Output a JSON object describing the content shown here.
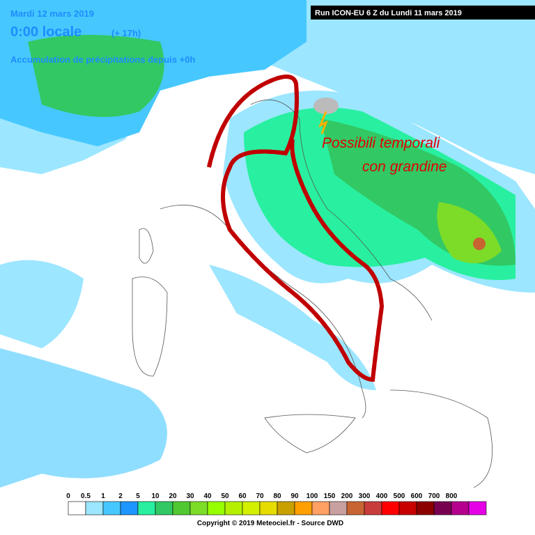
{
  "header": {
    "date": "Mardi 12 mars 2019",
    "time": "0:00 locale",
    "offset": "(+ 17h)",
    "subtitle": "Accumulation de précipitations depuis +0h",
    "run": "Run ICON-EU 6 Z du Lundi 11 mars 2019"
  },
  "annotation": {
    "line1": "Possibili  temporali",
    "line2": "con grandine"
  },
  "legend": {
    "labels": [
      "0",
      "0.5",
      "1",
      "2",
      "5",
      "10",
      "20",
      "30",
      "40",
      "50",
      "60",
      "70",
      "80",
      "90",
      "100",
      "150",
      "200",
      "300",
      "400",
      "500",
      "600",
      "700",
      "800"
    ],
    "colors": [
      "#ffffff",
      "#9ce6ff",
      "#46c8ff",
      "#1e96ff",
      "#28f0a0",
      "#32c864",
      "#50c832",
      "#7ddc28",
      "#96ff00",
      "#b4f000",
      "#d2f000",
      "#e6dc00",
      "#c8a000",
      "#ffa000",
      "#ffa064",
      "#c8a0a0",
      "#c86432",
      "#c83c3c",
      "#ff0000",
      "#c80000",
      "#8c0000",
      "#780050",
      "#b4008c",
      "#e600e6"
    ]
  },
  "footer": {
    "copyright": "Copyright © 2019 Meteociel.fr - Source DWD"
  }
}
